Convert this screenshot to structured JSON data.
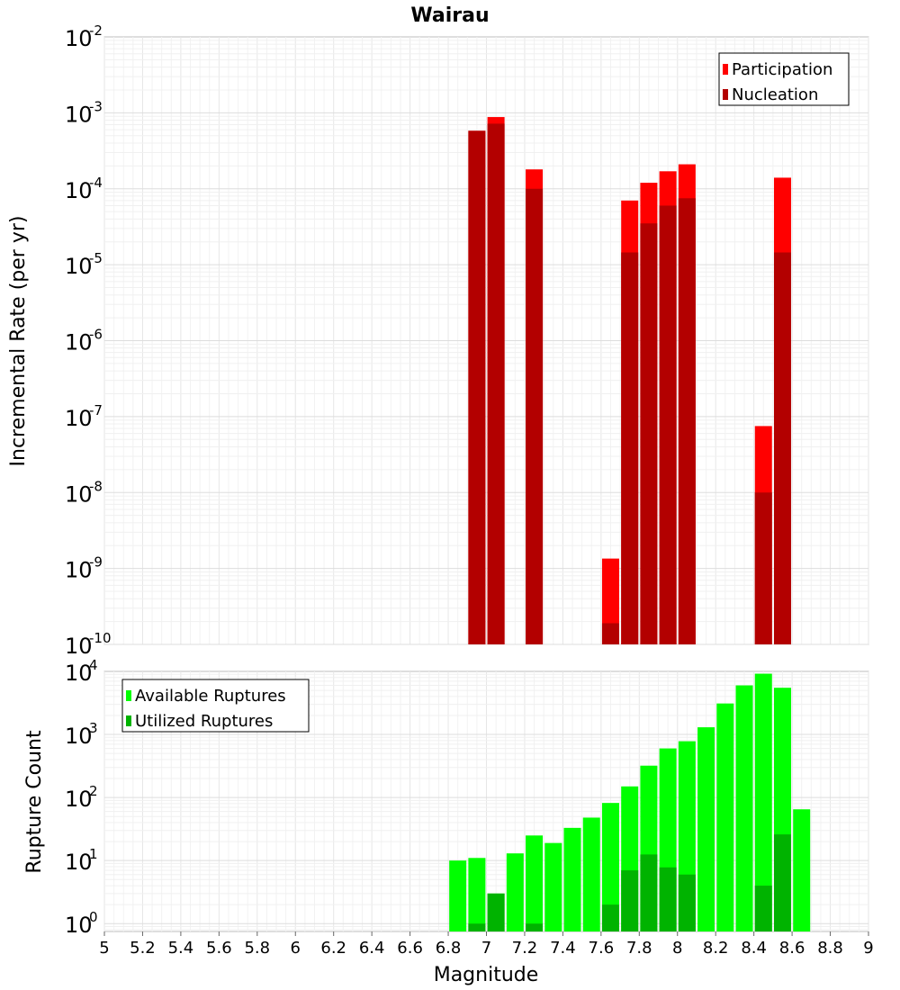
{
  "chart_data": [
    {
      "type": "bar",
      "title": "Wairau",
      "xlabel": "",
      "ylabel": "Incremental Rate (per yr)",
      "xlim": [
        5,
        9
      ],
      "ylim": [
        1e-10,
        0.01
      ],
      "yscale": "log",
      "y_tick_exponents": [
        "-2",
        "-3",
        "-4",
        "-5",
        "-6",
        "-7",
        "-8",
        "-9",
        "-10"
      ],
      "grid": true,
      "legend_position": "top-right",
      "series": [
        {
          "name": "Participation",
          "color": "#ff0000",
          "x": [
            6.95,
            7.05,
            7.25,
            7.65,
            7.75,
            7.85,
            7.95,
            8.05,
            8.45,
            8.55
          ],
          "values": [
            0.00058,
            0.00088,
            0.00018,
            1.35e-09,
            7e-05,
            0.00012,
            0.00017,
            0.00021,
            7.5e-08,
            0.00014
          ]
        },
        {
          "name": "Nucleation",
          "color": "#b30000",
          "x": [
            6.95,
            7.05,
            7.25,
            7.65,
            7.75,
            7.85,
            7.95,
            8.05,
            8.45,
            8.55
          ],
          "values": [
            0.00058,
            0.00072,
            0.0001,
            1.9e-10,
            1.45e-05,
            3.5e-05,
            6e-05,
            7.5e-05,
            1e-08,
            1.45e-05
          ]
        }
      ]
    },
    {
      "type": "bar",
      "title": "",
      "xlabel": "Magnitude",
      "ylabel": "Rupture Count",
      "xlim": [
        5,
        9
      ],
      "ylim": [
        0.75,
        10000
      ],
      "yscale": "log",
      "y_tick_exponents": [
        "4",
        "3",
        "2",
        "1",
        "0"
      ],
      "x_ticks": [
        "5",
        "5.2",
        "5.4",
        "5.6",
        "5.8",
        "6",
        "6.2",
        "6.4",
        "6.6",
        "6.8",
        "7",
        "7.2",
        "7.4",
        "7.6",
        "7.8",
        "8",
        "8.2",
        "8.4",
        "8.6",
        "8.8",
        "9"
      ],
      "grid": true,
      "legend_position": "top-left",
      "series": [
        {
          "name": "Available Ruptures",
          "color": "#00ff00",
          "x": [
            6.85,
            6.95,
            7.05,
            7.15,
            7.25,
            7.35,
            7.45,
            7.55,
            7.65,
            7.75,
            7.85,
            7.95,
            8.05,
            8.15,
            8.25,
            8.35,
            8.45,
            8.55,
            8.65
          ],
          "values": [
            10,
            11,
            3,
            13,
            25,
            19,
            33,
            48,
            82,
            150,
            320,
            600,
            780,
            1300,
            3100,
            6000,
            9200,
            5500,
            65
          ]
        },
        {
          "name": "Utilized Ruptures",
          "color": "#00b300",
          "x": [
            6.95,
            7.05,
            7.25,
            7.65,
            7.75,
            7.85,
            7.95,
            8.05,
            8.45,
            8.55
          ],
          "values": [
            1,
            3,
            1,
            2,
            7,
            12.5,
            7.8,
            6,
            4,
            26
          ]
        }
      ]
    }
  ]
}
